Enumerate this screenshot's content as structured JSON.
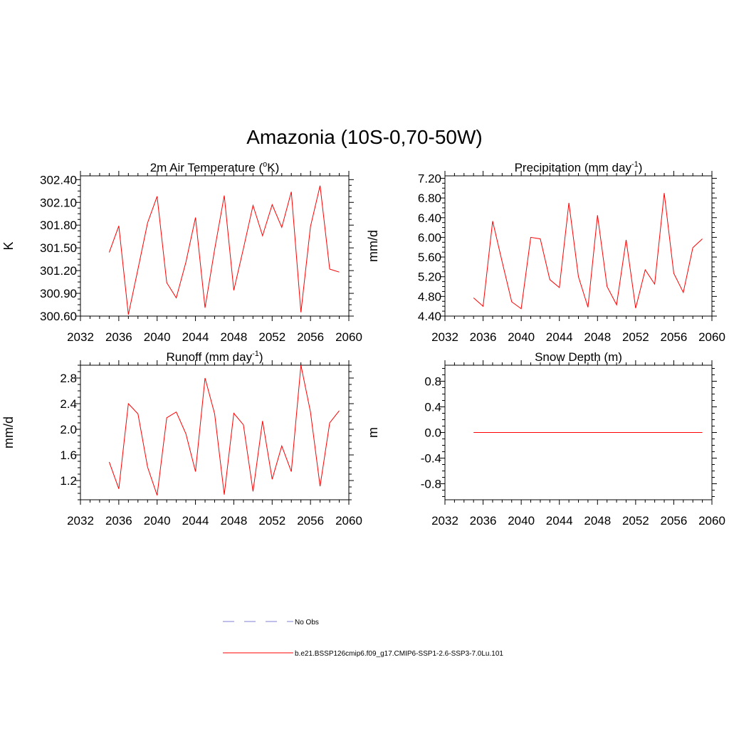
{
  "title": "Amazonia (10S-0,70-50W)",
  "colors": {
    "series": "#ff0000",
    "no_obs": "#9999dd",
    "axis": "#000000"
  },
  "legend": {
    "no_obs_label": "No Obs",
    "series_label": "b.e21.BSSP126cmip6.f09_g17.CMIP6-SSP1-2.6-SSP3-7.0Lu.101"
  },
  "chart_data": [
    {
      "type": "line",
      "title": "2m Air Temperature (",
      "title_sup": "o",
      "title_suffix": "K)",
      "ylabel": "K",
      "xlim": [
        2032,
        2060
      ],
      "ylim": [
        300.6,
        302.45
      ],
      "xticks": [
        2032,
        2036,
        2040,
        2044,
        2048,
        2052,
        2056,
        2060
      ],
      "yticks": [
        300.6,
        300.9,
        301.2,
        301.5,
        301.8,
        302.1,
        302.4
      ],
      "ytick_labels": [
        "300.60",
        "300.90",
        "301.20",
        "301.50",
        "301.80",
        "302.10",
        "302.40"
      ],
      "series": [
        {
          "x": [
            2035,
            2036,
            2037,
            2038,
            2039,
            2040,
            2041,
            2042,
            2043,
            2044,
            2045,
            2046,
            2047,
            2048,
            2049,
            2050,
            2051,
            2052,
            2053,
            2054,
            2055,
            2056,
            2057,
            2058,
            2059
          ],
          "values": [
            301.44,
            301.79,
            300.62,
            301.22,
            301.83,
            302.18,
            301.04,
            300.84,
            301.31,
            301.9,
            300.71,
            301.48,
            302.19,
            300.94,
            301.49,
            302.06,
            301.66,
            302.07,
            301.77,
            302.24,
            300.65,
            301.78,
            302.32,
            301.22,
            301.18
          ]
        }
      ]
    },
    {
      "type": "line",
      "title": "Precipitation (mm day",
      "title_sup": "-1",
      "title_suffix": ")",
      "ylabel": "mm/d",
      "xlim": [
        2032,
        2060
      ],
      "ylim": [
        4.4,
        7.25
      ],
      "xticks": [
        2032,
        2036,
        2040,
        2044,
        2048,
        2052,
        2056,
        2060
      ],
      "yticks": [
        4.4,
        4.8,
        5.2,
        5.6,
        6.0,
        6.4,
        6.8,
        7.2
      ],
      "ytick_labels": [
        "4.40",
        "4.80",
        "5.20",
        "5.60",
        "6.00",
        "6.40",
        "6.80",
        "7.20"
      ],
      "series": [
        {
          "x": [
            2035,
            2036,
            2037,
            2038,
            2039,
            2040,
            2041,
            2042,
            2043,
            2044,
            2045,
            2046,
            2047,
            2048,
            2049,
            2050,
            2051,
            2052,
            2053,
            2054,
            2055,
            2056,
            2057,
            2058,
            2059
          ],
          "values": [
            4.77,
            4.6,
            6.33,
            5.5,
            4.69,
            4.55,
            6.0,
            5.97,
            5.14,
            4.98,
            6.7,
            5.2,
            4.58,
            6.45,
            5.0,
            4.63,
            5.95,
            4.56,
            5.34,
            5.05,
            6.9,
            5.27,
            4.88,
            5.79,
            5.97
          ]
        }
      ]
    },
    {
      "type": "line",
      "title": "Runoff (mm day",
      "title_sup": "-1",
      "title_suffix": ")",
      "ylabel": "mm/d",
      "xlim": [
        2032,
        2060
      ],
      "ylim": [
        0.9,
        3.0
      ],
      "xticks": [
        2032,
        2036,
        2040,
        2044,
        2048,
        2052,
        2056,
        2060
      ],
      "yticks": [
        1.2,
        1.6,
        2.0,
        2.4,
        2.8
      ],
      "ytick_labels": [
        "1.2",
        "1.6",
        "2.0",
        "2.4",
        "2.8"
      ],
      "series": [
        {
          "x": [
            2035,
            2036,
            2037,
            2038,
            2039,
            2040,
            2041,
            2042,
            2043,
            2044,
            2045,
            2046,
            2047,
            2048,
            2049,
            2050,
            2051,
            2052,
            2053,
            2054,
            2055,
            2056,
            2057,
            2058,
            2059
          ],
          "values": [
            1.49,
            1.07,
            2.4,
            2.24,
            1.41,
            0.97,
            2.18,
            2.27,
            1.93,
            1.34,
            2.8,
            2.24,
            0.98,
            2.25,
            2.07,
            1.03,
            2.13,
            1.22,
            1.74,
            1.34,
            3.0,
            2.27,
            1.11,
            2.1,
            2.29
          ]
        }
      ]
    },
    {
      "type": "line",
      "title": "Snow Depth (m)",
      "title_sup": "",
      "title_suffix": "",
      "ylabel": "m",
      "xlim": [
        2032,
        2060
      ],
      "ylim": [
        -1.05,
        1.05
      ],
      "xticks": [
        2032,
        2036,
        2040,
        2044,
        2048,
        2052,
        2056,
        2060
      ],
      "yticks": [
        -0.8,
        -0.4,
        0.0,
        0.4,
        0.8
      ],
      "ytick_labels": [
        "-0.8",
        "-0.4",
        "0.0",
        "0.4",
        "0.8"
      ],
      "series": [
        {
          "x": [
            2035,
            2036,
            2037,
            2038,
            2039,
            2040,
            2041,
            2042,
            2043,
            2044,
            2045,
            2046,
            2047,
            2048,
            2049,
            2050,
            2051,
            2052,
            2053,
            2054,
            2055,
            2056,
            2057,
            2058,
            2059
          ],
          "values": [
            0,
            0,
            0,
            0,
            0,
            0,
            0,
            0,
            0,
            0,
            0,
            0,
            0,
            0,
            0,
            0,
            0,
            0,
            0,
            0,
            0,
            0,
            0,
            0,
            0
          ]
        }
      ]
    }
  ]
}
